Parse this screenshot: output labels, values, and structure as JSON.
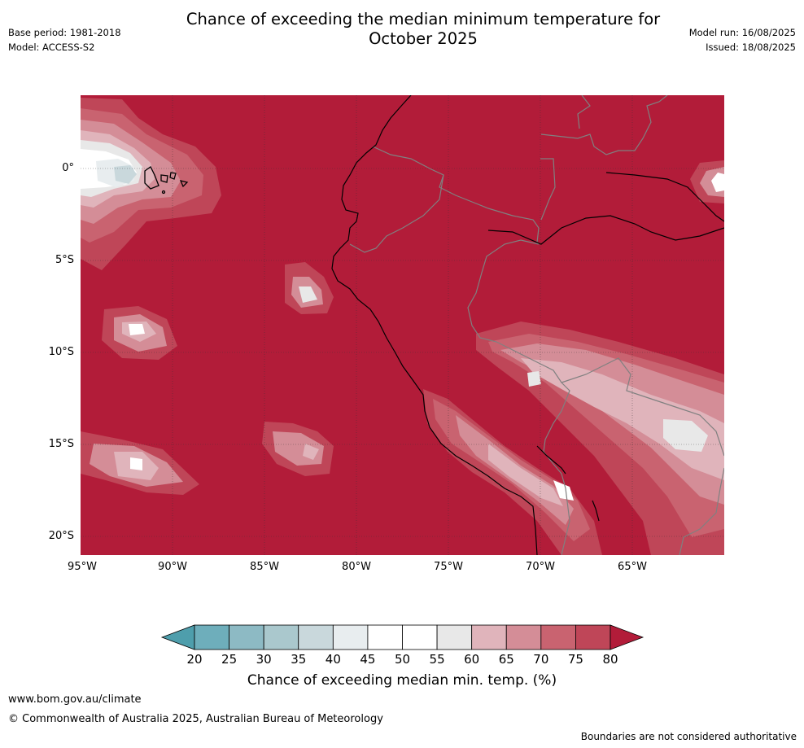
{
  "header": {
    "title_line1": "Chance of exceeding the median minimum temperature for",
    "title_line2": "October 2025",
    "base_period": "Base period: 1981-2018",
    "model": "Model: ACCESS-S2",
    "model_run": "Model run: 16/08/2025",
    "issued": "Issued: 18/08/2025"
  },
  "map": {
    "lat_labels": [
      "0°",
      "5°S",
      "10°S",
      "15°S",
      "20°S"
    ],
    "lon_labels": [
      "95°W",
      "90°W",
      "85°W",
      "80°W",
      "75°W",
      "70°W",
      "65°W"
    ],
    "background_color": "#b21c39",
    "grid": true
  },
  "colorbar": {
    "ticks": [
      "20",
      "25",
      "30",
      "35",
      "40",
      "45",
      "50",
      "55",
      "60",
      "65",
      "70",
      "75",
      "80"
    ],
    "colors": [
      "#4e9eac",
      "#6eaebb",
      "#8dbac4",
      "#aac8cd",
      "#c9d8dc",
      "#e8edef",
      "#ffffff",
      "#ffffff",
      "#e8e8e8",
      "#e0b4bb",
      "#d48d97",
      "#c96370",
      "#bf4658",
      "#b21c39"
    ],
    "label": "Chance of exceeding median min. temp. (%)"
  },
  "footer": {
    "website": "www.bom.gov.au/climate",
    "copyright": "© Commonwealth of Australia 2025, Australian Bureau of Meteorology",
    "disclaimer": "Boundaries are not considered authoritative"
  }
}
